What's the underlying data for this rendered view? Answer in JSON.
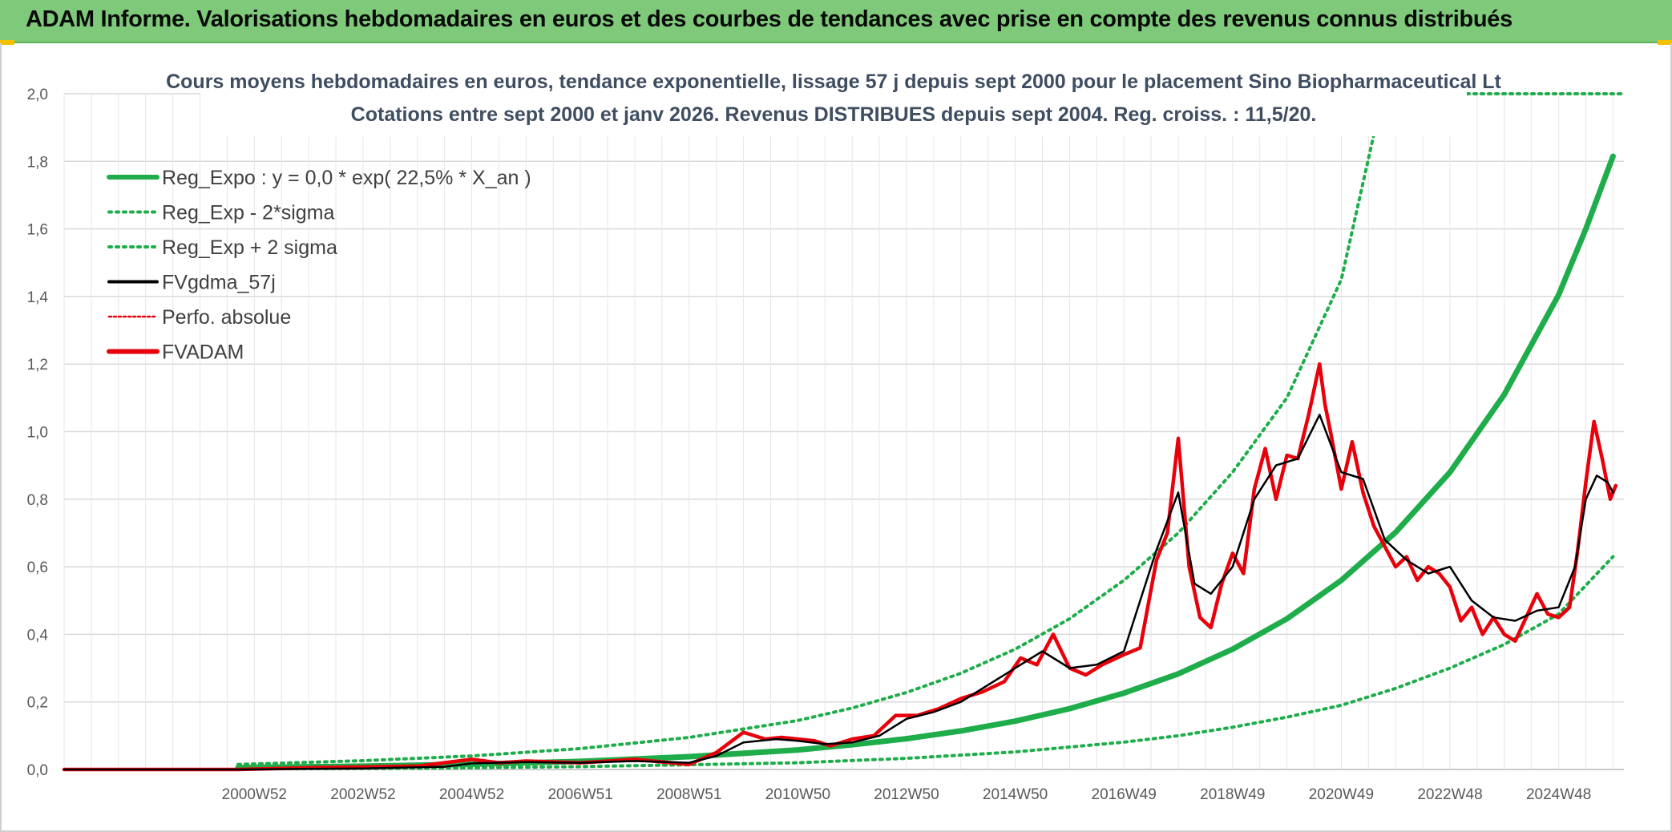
{
  "header": {
    "title": "ADAM Informe. Valorisations hebdomadaires en euros et des courbes de tendances avec prise en compte des revenus connus distribués"
  },
  "colors": {
    "header_bg": "#7ec97a",
    "reg_expo": "#1fad4b",
    "sigma_lines": "#1fad4b",
    "fvgdma": "#000000",
    "perfo": "#e8000b",
    "fvadam": "#e8000b",
    "grid": "#d9d9d9"
  },
  "chart_data": {
    "type": "line",
    "title_line1": "Cours moyens hebdomadaires en euros, tendance exponentielle, lissage 57 j depuis sept 2000 pour le placement Sino Biopharmaceutical Lt",
    "title_line2": "Cotations entre sept 2000 et janv 2026. Revenus DISTRIBUES depuis sept 2004. Reg. croiss. : 11,5/20.",
    "xlabel": "",
    "ylabel": "",
    "x_range_years": [
      1997.5,
      2026.2
    ],
    "ylim": [
      0,
      2.0
    ],
    "y_ticks": [
      {
        "value": 0.0,
        "label": "0,0"
      },
      {
        "value": 0.2,
        "label": "0,2"
      },
      {
        "value": 0.4,
        "label": "0,4"
      },
      {
        "value": 0.6,
        "label": "0,6"
      },
      {
        "value": 0.8,
        "label": "0,8"
      },
      {
        "value": 1.0,
        "label": "1,0"
      },
      {
        "value": 1.2,
        "label": "1,2"
      },
      {
        "value": 1.4,
        "label": "1,4"
      },
      {
        "value": 1.6,
        "label": "1,6"
      },
      {
        "value": 1.8,
        "label": "1,8"
      },
      {
        "value": 2.0,
        "label": "2,0"
      }
    ],
    "x_ticks": [
      {
        "year": 2001.0,
        "label": "2000W52"
      },
      {
        "year": 2003.0,
        "label": "2002W52"
      },
      {
        "year": 2005.0,
        "label": "2004W52"
      },
      {
        "year": 2007.0,
        "label": "2006W51"
      },
      {
        "year": 2009.0,
        "label": "2008W51"
      },
      {
        "year": 2011.0,
        "label": "2010W50"
      },
      {
        "year": 2013.0,
        "label": "2012W50"
      },
      {
        "year": 2015.0,
        "label": "2014W50"
      },
      {
        "year": 2017.0,
        "label": "2016W49"
      },
      {
        "year": 2019.0,
        "label": "2018W49"
      },
      {
        "year": 2021.0,
        "label": "2020W49"
      },
      {
        "year": 2023.0,
        "label": "2022W48"
      },
      {
        "year": 2025.0,
        "label": "2024W48"
      }
    ],
    "legend": [
      {
        "key": "reg_expo",
        "label": "Reg_Expo : y = 0,0 * exp( 22,5% *  X_an )",
        "style": "solid-thick",
        "color": "#1fad4b"
      },
      {
        "key": "reg_minus",
        "label": "Reg_Exp - 2*sigma",
        "style": "dotted",
        "color": "#1fad4b"
      },
      {
        "key": "reg_plus",
        "label": "Reg_Exp + 2 sigma",
        "style": "dotted",
        "color": "#1fad4b"
      },
      {
        "key": "fvgdma",
        "label": "FVgdma_57j",
        "style": "solid",
        "color": "#000000"
      },
      {
        "key": "perfo",
        "label": "Perfo. absolue",
        "style": "dotted-thin",
        "color": "#e8000b"
      },
      {
        "key": "fvadam",
        "label": "FVADAM",
        "style": "solid-thick",
        "color": "#e8000b"
      }
    ],
    "series": [
      {
        "name": "Reg_Expo",
        "x": [
          2000.7,
          2003,
          2005,
          2007,
          2009,
          2011,
          2012,
          2013,
          2014,
          2015,
          2016,
          2017,
          2018,
          2019,
          2020,
          2021,
          2022,
          2023,
          2024,
          2025,
          2025.5,
          2026.0
        ],
        "values": [
          0.0058,
          0.0098,
          0.0155,
          0.024,
          0.038,
          0.058,
          0.073,
          0.091,
          0.114,
          0.143,
          0.18,
          0.226,
          0.283,
          0.356,
          0.446,
          0.56,
          0.702,
          0.88,
          1.11,
          1.405,
          1.6,
          1.815
        ]
      },
      {
        "name": "Reg_Exp - 2*sigma",
        "x": [
          2000.7,
          2004,
          2007,
          2009,
          2011,
          2013,
          2015,
          2017,
          2018,
          2019,
          2020,
          2021,
          2022,
          2023,
          2024,
          2025,
          2026.0
        ],
        "values": [
          0.002,
          0.0035,
          0.0085,
          0.014,
          0.02,
          0.033,
          0.052,
          0.081,
          0.1,
          0.125,
          0.155,
          0.19,
          0.24,
          0.3,
          0.37,
          0.46,
          0.63
        ]
      },
      {
        "name": "Reg_Exp + 2 sigma",
        "x": [
          2000.7,
          2003,
          2005,
          2007,
          2009,
          2011,
          2012,
          2013,
          2014,
          2015,
          2016,
          2017,
          2018,
          2019,
          2020,
          2021,
          2021.6
        ],
        "values": [
          0.015,
          0.026,
          0.04,
          0.062,
          0.095,
          0.145,
          0.182,
          0.228,
          0.285,
          0.356,
          0.446,
          0.56,
          0.7,
          0.88,
          1.1,
          1.45,
          1.88
        ]
      },
      {
        "name": "FVgdma_57j",
        "x": [
          1997.5,
          2000.7,
          2003,
          2004.5,
          2005,
          2006,
          2007,
          2008,
          2009,
          2009.5,
          2010,
          2010.6,
          2011,
          2011.5,
          2012,
          2012.5,
          2013,
          2013.5,
          2014,
          2014.5,
          2015,
          2015.5,
          2016,
          2016.5,
          2017,
          2017.3,
          2017.6,
          2018,
          2018.3,
          2018.6,
          2019,
          2019.4,
          2019.8,
          2020.2,
          2020.6,
          2021,
          2021.4,
          2021.8,
          2022.2,
          2022.6,
          2023,
          2023.4,
          2023.8,
          2024.2,
          2024.6,
          2025,
          2025.3,
          2025.5,
          2025.7,
          2025.9,
          2026.0
        ],
        "values": [
          0.0,
          0.0,
          0.003,
          0.008,
          0.018,
          0.022,
          0.02,
          0.025,
          0.02,
          0.04,
          0.08,
          0.09,
          0.085,
          0.075,
          0.08,
          0.1,
          0.15,
          0.17,
          0.2,
          0.25,
          0.3,
          0.35,
          0.3,
          0.31,
          0.35,
          0.5,
          0.65,
          0.82,
          0.55,
          0.52,
          0.6,
          0.8,
          0.9,
          0.92,
          1.05,
          0.88,
          0.86,
          0.68,
          0.62,
          0.58,
          0.6,
          0.5,
          0.45,
          0.44,
          0.47,
          0.48,
          0.6,
          0.8,
          0.87,
          0.85,
          0.82
        ]
      },
      {
        "name": "FVADAM",
        "x": [
          1997.5,
          2000.7,
          2002,
          2004,
          2005,
          2005.5,
          2006,
          2007,
          2008,
          2009,
          2009.5,
          2010,
          2010.4,
          2010.7,
          2011,
          2011.3,
          2011.6,
          2012,
          2012.4,
          2012.8,
          2013.2,
          2013.6,
          2014,
          2014.4,
          2014.8,
          2015.1,
          2015.4,
          2015.7,
          2016,
          2016.3,
          2016.6,
          2017,
          2017.3,
          2017.6,
          2017.8,
          2018,
          2018.2,
          2018.4,
          2018.6,
          2018.8,
          2019,
          2019.2,
          2019.4,
          2019.6,
          2019.8,
          2020,
          2020.2,
          2020.4,
          2020.6,
          2020.7,
          2020.8,
          2021,
          2021.2,
          2021.4,
          2021.6,
          2021.8,
          2022,
          2022.2,
          2022.4,
          2022.6,
          2022.8,
          2023,
          2023.2,
          2023.4,
          2023.6,
          2023.8,
          2024,
          2024.2,
          2024.4,
          2024.6,
          2024.8,
          2025,
          2025.2,
          2025.35,
          2025.5,
          2025.65,
          2025.8,
          2025.95,
          2026.05
        ],
        "values": [
          0.0,
          0.0,
          0.005,
          0.01,
          0.03,
          0.02,
          0.025,
          0.02,
          0.03,
          0.015,
          0.05,
          0.11,
          0.09,
          0.095,
          0.09,
          0.085,
          0.07,
          0.09,
          0.1,
          0.16,
          0.16,
          0.18,
          0.21,
          0.23,
          0.26,
          0.33,
          0.31,
          0.4,
          0.3,
          0.28,
          0.31,
          0.34,
          0.36,
          0.62,
          0.7,
          0.98,
          0.6,
          0.45,
          0.42,
          0.55,
          0.64,
          0.58,
          0.83,
          0.95,
          0.8,
          0.93,
          0.92,
          1.05,
          1.2,
          1.08,
          1.0,
          0.83,
          0.97,
          0.82,
          0.72,
          0.66,
          0.6,
          0.63,
          0.56,
          0.6,
          0.58,
          0.54,
          0.44,
          0.48,
          0.4,
          0.45,
          0.4,
          0.38,
          0.45,
          0.52,
          0.46,
          0.45,
          0.48,
          0.65,
          0.85,
          1.03,
          0.92,
          0.8,
          0.84
        ]
      }
    ]
  }
}
